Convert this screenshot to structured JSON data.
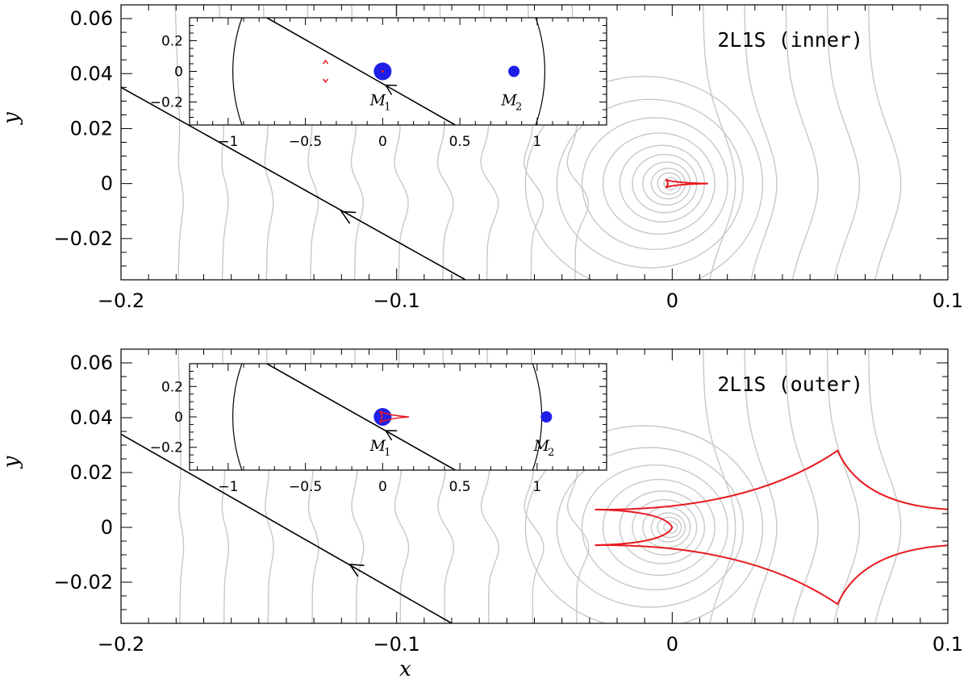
{
  "chart_data": [
    {
      "type": "scatter",
      "panel": "top",
      "title": "",
      "label": "2L1S (inner)",
      "xlabel": "",
      "ylabel": "y",
      "xlim": [
        -0.2,
        0.1
      ],
      "ylim": [
        -0.035,
        0.065
      ],
      "xticks": [
        -0.2,
        -0.1,
        0,
        0.1
      ],
      "xtick_labels": [
        "−0.2",
        "−0.1",
        "0",
        "0.1"
      ],
      "yticks": [
        -0.02,
        0,
        0.02,
        0.04,
        0.06
      ],
      "ytick_labels": [
        "−0.02",
        "0",
        "0.02",
        "0.04",
        "0.06"
      ],
      "trajectory": {
        "x": [
          -0.2,
          -0.075
        ],
        "y": [
          0.035,
          -0.035
        ],
        "arrow_at": [
          -0.12,
          -0.0102
        ]
      },
      "caustic": {
        "type": "small-wedge",
        "center": [
          0.0,
          0.0
        ],
        "tip_x": 0.013
      },
      "contours": "gray magnification contours",
      "inset": {
        "xlim": [
          -1.25,
          1.45
        ],
        "ylim": [
          -0.35,
          0.35
        ],
        "xticks": [
          -1,
          -0.5,
          0,
          0.5,
          1
        ],
        "xtick_labels": [
          "−1",
          "−0.5",
          "0",
          "0.5",
          "1"
        ],
        "yticks": [
          -0.2,
          0,
          0.2
        ],
        "ytick_labels": [
          "−0.2",
          "0",
          "0.2"
        ],
        "masses": [
          {
            "name": "M",
            "sub": "1",
            "x": 0.0,
            "y": 0.0
          },
          {
            "name": "M",
            "sub": "2",
            "x": 0.85,
            "y": 0.0
          }
        ],
        "trajectory": {
          "x": [
            -0.75,
            0.47
          ],
          "y": [
            0.35,
            -0.35
          ]
        },
        "einstein_ring_x": [
          -0.97,
          1.05
        ],
        "planetary_caustic_x": -0.37
      }
    },
    {
      "type": "scatter",
      "panel": "bottom",
      "title": "",
      "label": "2L1S (outer)",
      "xlabel": "x",
      "ylabel": "y",
      "xlim": [
        -0.2,
        0.1
      ],
      "ylim": [
        -0.035,
        0.065
      ],
      "xticks": [
        -0.2,
        -0.1,
        0,
        0.1
      ],
      "xtick_labels": [
        "−0.2",
        "−0.1",
        "0",
        "0.1"
      ],
      "yticks": [
        -0.02,
        0,
        0.02,
        0.04,
        0.06
      ],
      "ytick_labels": [
        "−0.02",
        "0",
        "0.02",
        "0.04",
        "0.06"
      ],
      "trajectory": {
        "x": [
          -0.2,
          -0.08
        ],
        "y": [
          0.034,
          -0.035
        ],
        "arrow_at": [
          -0.117,
          -0.0135
        ]
      },
      "caustic": {
        "type": "resonant",
        "wedge_tip_x": 0.0,
        "cusp_top": [
          0.06,
          0.028
        ],
        "cusp_bottom": [
          0.06,
          -0.028
        ],
        "left_ends_x": -0.028
      },
      "contours": "gray magnification contours",
      "inset": {
        "xlim": [
          -1.25,
          1.45
        ],
        "ylim": [
          -0.35,
          0.35
        ],
        "xticks": [
          -1,
          -0.5,
          0,
          0.5,
          1
        ],
        "xtick_labels": [
          "−1",
          "−0.5",
          "0",
          "0.5",
          "1"
        ],
        "yticks": [
          -0.2,
          0,
          0.2
        ],
        "ytick_labels": [
          "−0.2",
          "0",
          "0.2"
        ],
        "masses": [
          {
            "name": "M",
            "sub": "1",
            "x": 0.0,
            "y": 0.0
          },
          {
            "name": "M",
            "sub": "2",
            "x": 1.06,
            "y": 0.0
          }
        ],
        "trajectory": {
          "x": [
            -0.75,
            0.47
          ],
          "y": [
            0.35,
            -0.35
          ]
        },
        "einstein_ring_x": [
          -0.97,
          1.03
        ]
      }
    }
  ],
  "colors": {
    "axes": "#000000",
    "contour": "#c8c8c8",
    "caustic": "#e8191f",
    "mass": "#1f1fe8",
    "trajectory": "#000000"
  }
}
